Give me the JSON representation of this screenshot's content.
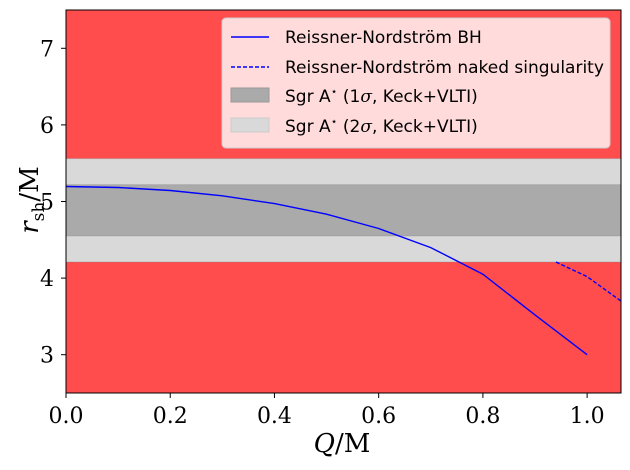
{
  "chart_data": {
    "type": "line",
    "xlabel_var": "Q",
    "xlabel_unit": "/M",
    "ylabel_var": "r",
    "ylabel_sub": "sh",
    "ylabel_unit": "/M",
    "xlim": [
      0.0,
      1.065
    ],
    "ylim": [
      2.5,
      7.5
    ],
    "x_ticks": [
      0.0,
      0.2,
      0.4,
      0.6,
      0.8,
      1.0
    ],
    "x_tick_labels": [
      "0.0",
      "0.2",
      "0.4",
      "0.6",
      "0.8",
      "1.0"
    ],
    "y_ticks": [
      3,
      4,
      5,
      6,
      7
    ],
    "y_tick_labels": [
      "3",
      "4",
      "5",
      "6",
      "7"
    ],
    "excluded_region_color": "#ff4d4d",
    "bands": [
      {
        "name": "Sgr A* (2σ, Keck+VLTI)",
        "ymin": 4.21,
        "ymax": 5.56,
        "color": "#d9d9d9"
      },
      {
        "name": "Sgr A* (1σ, Keck+VLTI)",
        "ymin": 4.55,
        "ymax": 5.22,
        "color": "#aaaaaa"
      }
    ],
    "series": [
      {
        "name": "Reissner-Nordström BH",
        "style": "solid",
        "color": "#0000ff",
        "x": [
          0.0,
          0.1,
          0.2,
          0.3,
          0.4,
          0.5,
          0.6,
          0.7,
          0.8,
          0.9,
          1.0
        ],
        "y": [
          5.196,
          5.183,
          5.143,
          5.074,
          4.973,
          4.834,
          4.648,
          4.398,
          4.051,
          3.52,
          3.0
        ]
      },
      {
        "name": "Reissner-Nordström naked singularity",
        "style": "dashed",
        "color": "#0000ff",
        "x": [
          0.94,
          1.0,
          1.065
        ],
        "y": [
          4.21,
          4.02,
          3.7
        ]
      }
    ]
  },
  "legend": {
    "entries": [
      {
        "label": "Reissner-Nordström BH",
        "kind": "line-solid",
        "color": "#0000ff"
      },
      {
        "label": "Reissner-Nordström naked singularity",
        "kind": "line-dashed",
        "color": "#0000ff"
      },
      {
        "label_prefix": "Sgr A",
        "label_star": "⋆",
        "label_open": " (1",
        "label_sigma": "σ",
        "label_close": ", Keck+VLTI)",
        "kind": "patch",
        "color": "#aaaaaa"
      },
      {
        "label_prefix": "Sgr A",
        "label_star": "⋆",
        "label_open": " (2",
        "label_sigma": "σ",
        "label_close": ", Keck+VLTI)",
        "kind": "patch",
        "color": "#d9d9d9"
      }
    ]
  }
}
